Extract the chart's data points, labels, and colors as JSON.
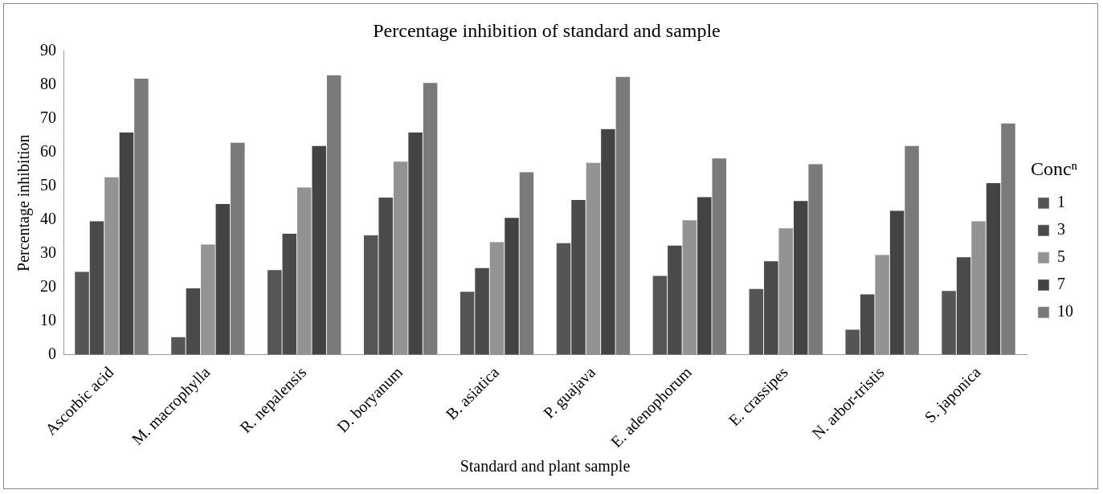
{
  "chart_data": {
    "type": "bar",
    "title": "Percentage inhibition of standard and sample",
    "xlabel": "Standard and plant sample",
    "ylabel": "Percentage inhibition",
    "legend_title": "Concⁿ",
    "legend": "right",
    "grid": false,
    "categories": [
      "Ascorbic acid",
      "M. macrophylla",
      "R. nepalensis",
      "D. boryanum",
      "B. asiatica",
      "P. guajava",
      "E. adenophorum",
      "E. crassipes",
      "N. arbor-tristis",
      "S. japonica"
    ],
    "ylim": [
      0,
      90
    ],
    "yticks": [
      0,
      10,
      20,
      30,
      40,
      50,
      60,
      70,
      80,
      90
    ],
    "series": [
      {
        "name": "1",
        "color": "#555555",
        "values": [
          24.7,
          5.3,
          25.2,
          35.5,
          18.8,
          33.2,
          23.5,
          19.6,
          7.5,
          19
        ]
      },
      {
        "name": "3",
        "color": "#4a4a4a",
        "values": [
          39.7,
          19.8,
          36,
          46.7,
          25.8,
          46,
          32.5,
          27.8,
          18,
          29
        ]
      },
      {
        "name": "5",
        "color": "#939393",
        "values": [
          52.7,
          32.8,
          49.7,
          57.4,
          33.5,
          57,
          40,
          37.6,
          29.7,
          39.7
        ]
      },
      {
        "name": "7",
        "color": "#434343",
        "values": [
          66,
          44.8,
          62,
          66,
          40.7,
          67,
          46.8,
          45.7,
          42.8,
          51
        ]
      },
      {
        "name": "10",
        "color": "#7a7a7a",
        "values": [
          82,
          63,
          83,
          80.7,
          54.2,
          82.5,
          58.3,
          56.6,
          62,
          68.7
        ]
      }
    ]
  }
}
